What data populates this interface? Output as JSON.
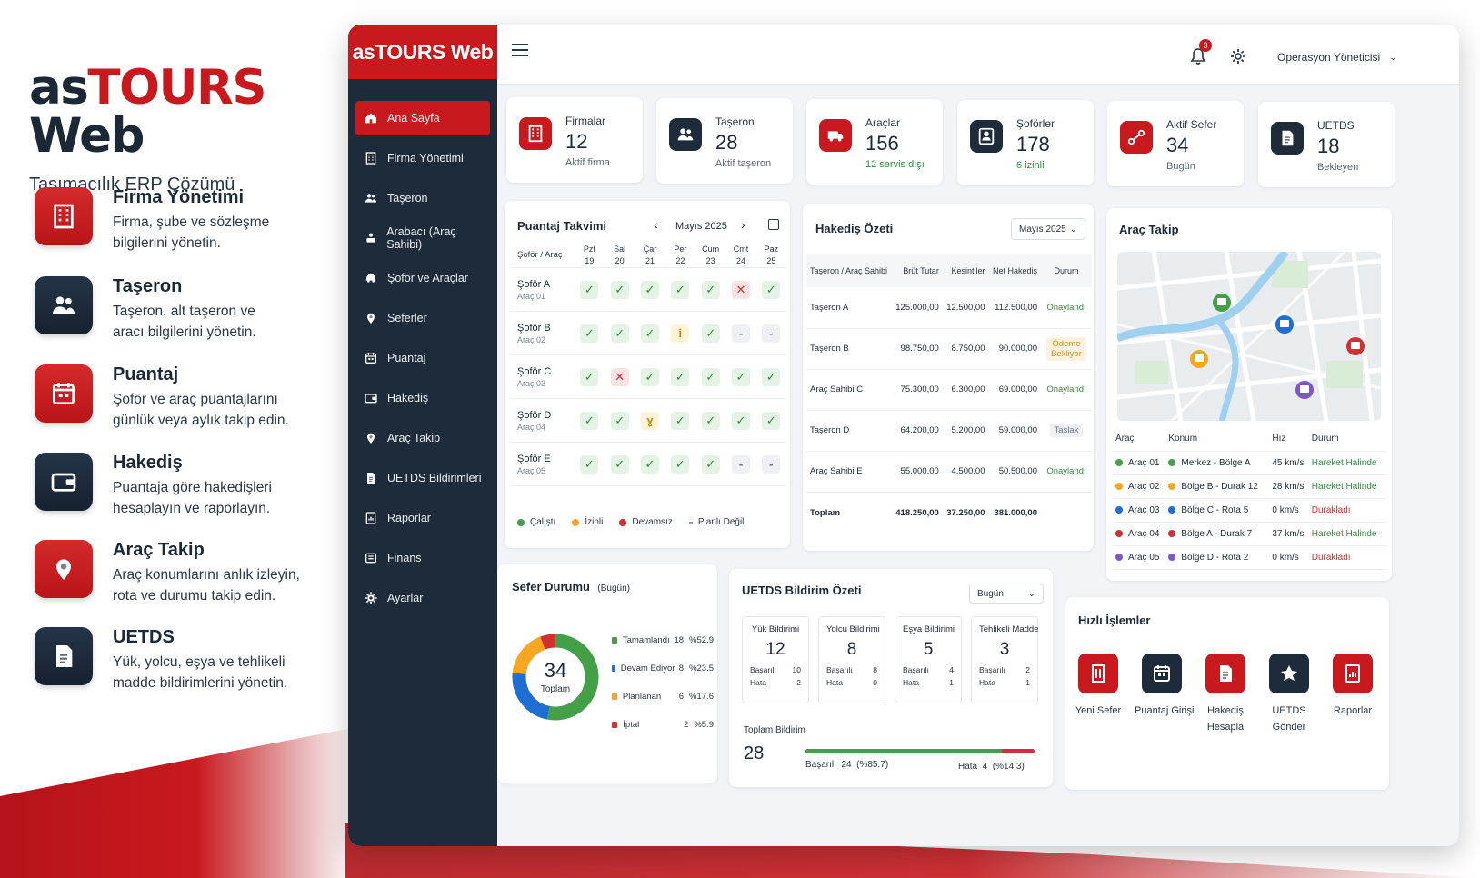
{
  "promo": {
    "brand_dark": "as",
    "brand_red": "TOURS",
    "brand_dark2": " Web",
    "tagline": "Taşımacılık ERP Çözümü",
    "features": [
      {
        "title": "Firma Yönetimi",
        "desc1": "Firma, şube ve sözleşme",
        "desc2": "bilgilerini yönetin.",
        "icon": "building-icon"
      },
      {
        "title": "Taşeron",
        "desc1": "Taşeron, alt taşeron ve",
        "desc2": "aracı bilgilerini yönetin.",
        "icon": "users-icon"
      },
      {
        "title": "Puantaj",
        "desc1": "Şoför ve araç puantajlarını",
        "desc2": "günlük veya aylık takip edin.",
        "icon": "calendar-icon"
      },
      {
        "title": "Hakediş",
        "desc1": "Puantaja göre hakedişleri",
        "desc2": "hesaplayın ve raporlayın.",
        "icon": "wallet-icon"
      },
      {
        "title": "Araç Takip",
        "desc1": "Araç konumlarını anlık izleyin,",
        "desc2": "rota ve durumu takip edin.",
        "icon": "location-pin-icon"
      },
      {
        "title": "UETDS",
        "desc1": "Yük, yolcu, eşya ve tehlikeli",
        "desc2": "madde bildirimlerini yönetin.",
        "icon": "document-icon"
      }
    ]
  },
  "sidebar": {
    "logo": "asTOURS Web",
    "items": [
      {
        "label": "Ana Sayfa",
        "icon": "home-icon"
      },
      {
        "label": "Firma Yönetimi",
        "icon": "building-icon"
      },
      {
        "label": "Taşeron",
        "icon": "users-icon"
      },
      {
        "label": "Arabacı (Araç Sahibi)",
        "icon": "owner-icon"
      },
      {
        "label": "Şoför ve Araçlar",
        "icon": "car-icon"
      },
      {
        "label": "Seferler",
        "icon": "location-pin-icon"
      },
      {
        "label": "Puantaj",
        "icon": "calendar-icon"
      },
      {
        "label": "Hakediş",
        "icon": "wallet-icon"
      },
      {
        "label": "Araç Takip",
        "icon": "location-pin-icon"
      },
      {
        "label": "UETDS Bildirimleri",
        "icon": "document-icon"
      },
      {
        "label": "Raporlar",
        "icon": "report-icon"
      },
      {
        "label": "Finans",
        "icon": "finance-icon"
      },
      {
        "label": "Ayarlar",
        "icon": "gear-icon"
      }
    ]
  },
  "header": {
    "notification_count": "3",
    "user": "Operasyon Yöneticisi"
  },
  "stats": [
    {
      "label": "Firmalar",
      "value": "12",
      "sub": "Aktif firma",
      "icon": "building-icon",
      "color": "#c8191e",
      "sub_color": "#5b6675"
    },
    {
      "label": "Taşeron",
      "value": "28",
      "sub": "Aktif taşeron",
      "icon": "users-icon",
      "color": "#1e2b3a",
      "sub_color": "#5b6675"
    },
    {
      "label": "Araçlar",
      "value": "156",
      "sub": "12 servis dışı",
      "icon": "truck-icon",
      "color": "#c8191e",
      "sub_color": "#2d8f3e"
    },
    {
      "label": "Şoförler",
      "value": "178",
      "sub": "6 izinli",
      "icon": "driver-icon",
      "color": "#1e2b3a",
      "sub_color": "#2d8f3e"
    },
    {
      "label": "Aktif Sefer",
      "value": "34",
      "sub": "Bugün",
      "icon": "route-icon",
      "color": "#c8191e",
      "sub_color": "#5b6675"
    },
    {
      "label": "UETDS",
      "value": "18",
      "sub": "Bekleyen",
      "icon": "document-icon",
      "color": "#1e2b3a",
      "sub_color": "#5b6675"
    }
  ],
  "puantaj": {
    "title": "Puantaj Takvimi",
    "month": "Mayıs 2025",
    "col_header": "Şoför / Araç",
    "days": [
      {
        "d": "Pzt",
        "n": "19"
      },
      {
        "d": "Sal",
        "n": "20"
      },
      {
        "d": "Çar",
        "n": "21"
      },
      {
        "d": "Per",
        "n": "22"
      },
      {
        "d": "Cum",
        "n": "23"
      },
      {
        "d": "Cmt",
        "n": "24"
      },
      {
        "d": "Paz",
        "n": "25"
      }
    ],
    "rows": [
      {
        "name": "Şoför A",
        "car": "Araç 01",
        "cells": [
          "ok",
          "ok",
          "ok",
          "ok",
          "ok",
          "x",
          "ok"
        ]
      },
      {
        "name": "Şoför B",
        "car": "Araç 02",
        "cells": [
          "ok",
          "ok",
          "ok",
          "i",
          "ok",
          "d",
          "d"
        ]
      },
      {
        "name": "Şoför C",
        "car": "Araç 03",
        "cells": [
          "ok",
          "x",
          "ok",
          "ok",
          "ok",
          "ok",
          "ok"
        ]
      },
      {
        "name": "Şoför D",
        "car": "Araç 04",
        "cells": [
          "ok",
          "ok",
          "y",
          "ok",
          "ok",
          "ok",
          "ok"
        ]
      },
      {
        "name": "Şoför E",
        "car": "Araç 05",
        "cells": [
          "ok",
          "ok",
          "ok",
          "ok",
          "ok",
          "d",
          "d"
        ]
      }
    ],
    "legend": [
      {
        "label": "Çalıştı",
        "color": "#43a047"
      },
      {
        "label": "İzinli",
        "color": "#f5a623"
      },
      {
        "label": "Devamsız",
        "color": "#d32f2f"
      },
      {
        "label": "Planlı Değil",
        "color": "#9aa3ad"
      }
    ]
  },
  "hakedis": {
    "title": "Hakediş Özeti",
    "period": "Mayıs 2025",
    "headers": [
      "Taşeron / Araç Sahibi",
      "Brüt Tutar",
      "Kesintiler",
      "Net Hakediş",
      "Durum"
    ],
    "rows": [
      {
        "name": "Taşeron A",
        "brut": "125.000,00",
        "kes": "12.500,00",
        "net": "112.500,00",
        "durum": "Onaylandı",
        "type": "ok"
      },
      {
        "name": "Taşeron B",
        "brut": "98.750,00",
        "kes": "8.750,00",
        "net": "90.000,00",
        "durum": "Ödeme Bekliyor",
        "type": "pend"
      },
      {
        "name": "Araç Sahibi C",
        "brut": "75.300,00",
        "kes": "6.300,00",
        "net": "69.000,00",
        "durum": "Onaylandı",
        "type": "ok"
      },
      {
        "name": "Taşeron D",
        "brut": "64.200,00",
        "kes": "5.200,00",
        "net": "59.000,00",
        "durum": "Taslak",
        "type": "draft"
      },
      {
        "name": "Araç Sahibi E",
        "brut": "55.000,00",
        "kes": "4.500,00",
        "net": "50.500,00",
        "durum": "Onaylandı",
        "type": "ok"
      }
    ],
    "total": {
      "label": "Toplam",
      "brut": "418.250,00",
      "kes": "37.250,00",
      "net": "381.000,00"
    }
  },
  "tracking": {
    "title": "Araç Takip",
    "headers": [
      "Araç",
      "Konum",
      "Hız",
      "Durum"
    ],
    "rows": [
      {
        "arac": "Araç 01",
        "konum": "Merkez - Bölge A",
        "hiz": "45 km/s",
        "durum": "Hareket Halinde",
        "color": "#43a047",
        "status_color": "#2d8f3e"
      },
      {
        "arac": "Araç 02",
        "konum": "Bölge B - Durak 12",
        "hiz": "28 km/s",
        "durum": "Hareket Halinde",
        "color": "#f5a623",
        "status_color": "#2d8f3e"
      },
      {
        "arac": "Araç 03",
        "konum": "Bölge C - Rota 5",
        "hiz": "0 km/s",
        "durum": "Durakladı",
        "color": "#1e6fd1",
        "status_color": "#d32f2f"
      },
      {
        "arac": "Araç 04",
        "konum": "Bölge A - Durak 7",
        "hiz": "37 km/s",
        "durum": "Hareket Halinde",
        "color": "#d32f2f",
        "status_color": "#2d8f3e"
      },
      {
        "arac": "Araç 05",
        "konum": "Bölge D - Rota 2",
        "hiz": "0 km/s",
        "durum": "Durakladı",
        "color": "#7e57c2",
        "status_color": "#d32f2f"
      }
    ]
  },
  "sefer": {
    "title": "Sefer Durumu",
    "subtitle": "(Bugün)",
    "total": "34",
    "total_label": "Toplam",
    "items": [
      {
        "label": "Tamamlandı",
        "value": 18,
        "pct": "%52.9",
        "color": "#43a047"
      },
      {
        "label": "Devam Ediyor",
        "value": 8,
        "pct": "%23.5",
        "color": "#1e6fd1"
      },
      {
        "label": "Planlanan",
        "value": 6,
        "pct": "%17.6",
        "color": "#f5a623"
      },
      {
        "label": "İptal",
        "value": 2,
        "pct": "%5.9",
        "color": "#d32f2f"
      }
    ]
  },
  "uetds": {
    "title": "UETDS Bildirim Özeti",
    "period": "Bugün",
    "boxes": [
      {
        "title": "Yük Bildirimi",
        "value": "12",
        "ok": "10",
        "err": "2"
      },
      {
        "title": "Yolcu Bildirimi",
        "value": "8",
        "ok": "8",
        "err": "0"
      },
      {
        "title": "Eşya Bildirimi",
        "value": "5",
        "ok": "4",
        "err": "1"
      },
      {
        "title": "Tehlikeli Madde",
        "value": "3",
        "ok": "2",
        "err": "1"
      }
    ],
    "ok_label": "Başarılı",
    "err_label": "Hata",
    "total_label": "Toplam Bildirim",
    "total": "28",
    "success_text": "Başarılı  24  (%85.7)",
    "error_text": "Hata  4  (%14.3)",
    "success_fraction": 0.857
  },
  "quick": {
    "title": "Hızlı İşlemler",
    "items": [
      {
        "l1": "Yeni Sefer",
        "l2": "",
        "color": "#c8191e",
        "icon": "door-icon"
      },
      {
        "l1": "Puantaj Girişi",
        "l2": "",
        "color": "#1e2b3a",
        "icon": "calendar-icon"
      },
      {
        "l1": "Hakediş",
        "l2": "Hesapla",
        "color": "#c8191e",
        "icon": "document-icon"
      },
      {
        "l1": "UETDS",
        "l2": "Gönder",
        "color": "#1e2b3a",
        "icon": "send-icon"
      },
      {
        "l1": "Raporlar",
        "l2": "",
        "color": "#c8191e",
        "icon": "report-icon"
      }
    ]
  }
}
